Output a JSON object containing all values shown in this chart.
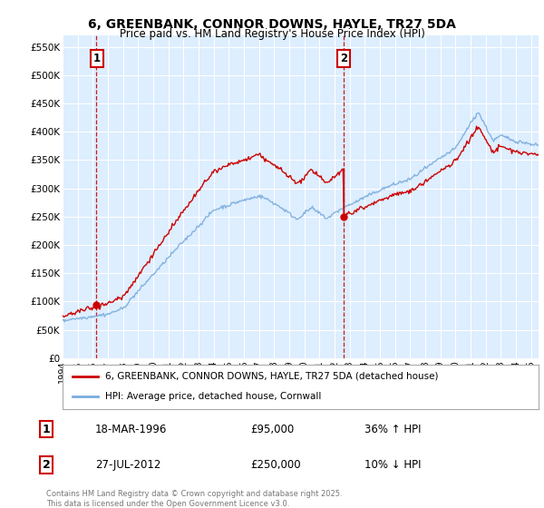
{
  "title_line1": "6, GREENBANK, CONNOR DOWNS, HAYLE, TR27 5DA",
  "title_line2": "Price paid vs. HM Land Registry's House Price Index (HPI)",
  "yticks": [
    0,
    50000,
    100000,
    150000,
    200000,
    250000,
    300000,
    350000,
    400000,
    450000,
    500000,
    550000
  ],
  "ytick_labels": [
    "£0",
    "£50K",
    "£100K",
    "£150K",
    "£200K",
    "£250K",
    "£300K",
    "£350K",
    "£400K",
    "£450K",
    "£500K",
    "£550K"
  ],
  "ylim": [
    0,
    570000
  ],
  "xlim_start": 1994.0,
  "xlim_end": 2025.5,
  "red_color": "#cc0000",
  "blue_color": "#7aacdc",
  "vline_color": "#cc0000",
  "grid_color": "#cccccc",
  "bg_color": "#ffffff",
  "chart_bg_color": "#ddeeff",
  "legend_label_red": "6, GREENBANK, CONNOR DOWNS, HAYLE, TR27 5DA (detached house)",
  "legend_label_blue": "HPI: Average price, detached house, Cornwall",
  "transaction1_date": "18-MAR-1996",
  "transaction1_price": "£95,000",
  "transaction1_hpi": "36% ↑ HPI",
  "transaction1_year": 1996.21,
  "transaction1_price_val": 95000,
  "transaction2_date": "27-JUL-2012",
  "transaction2_price": "£250,000",
  "transaction2_hpi": "10% ↓ HPI",
  "transaction2_year": 2012.57,
  "transaction2_price_val": 250000,
  "copyright_text": "Contains HM Land Registry data © Crown copyright and database right 2025.\nThis data is licensed under the Open Government Licence v3.0.",
  "xticks": [
    1994,
    1995,
    1996,
    1997,
    1998,
    1999,
    2000,
    2001,
    2002,
    2003,
    2004,
    2005,
    2006,
    2007,
    2008,
    2009,
    2010,
    2011,
    2012,
    2013,
    2014,
    2015,
    2016,
    2017,
    2018,
    2019,
    2020,
    2021,
    2022,
    2023,
    2024,
    2025
  ]
}
